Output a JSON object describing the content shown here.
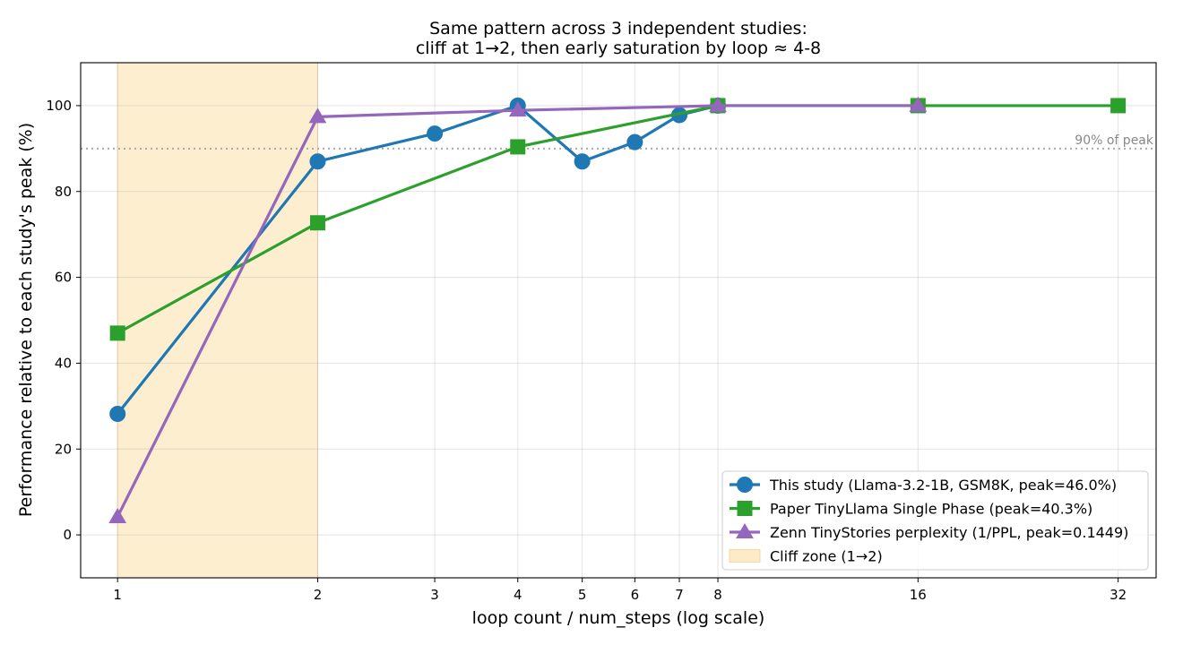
{
  "chart_data": {
    "type": "line",
    "title_lines": [
      "Same pattern across 3 independent studies:",
      "cliff at 1→2, then early saturation by loop ≈ 4-8"
    ],
    "xlabel": "loop count / num_steps (log scale)",
    "ylabel": "Performance relative to each study's peak (%)",
    "x_scale": "log2",
    "xlim": [
      0.88,
      36.5
    ],
    "ylim": [
      -10,
      110
    ],
    "x_ticks": [
      1,
      2,
      3,
      4,
      5,
      6,
      7,
      8,
      16,
      32
    ],
    "x_tick_labels": [
      "1",
      "2",
      "3",
      "4",
      "5",
      "6",
      "7",
      "8",
      "16",
      "32"
    ],
    "y_ticks": [
      0,
      20,
      40,
      60,
      80,
      100
    ],
    "y_tick_labels": [
      "0",
      "20",
      "40",
      "60",
      "80",
      "100"
    ],
    "grid": true,
    "legend_position": "lower-right",
    "shaded_region": {
      "x": [
        1,
        2
      ],
      "label": "Cliff zone (1→2)",
      "color": "#fdebc8"
    },
    "reference_line": {
      "y": 90,
      "label": "90% of peak",
      "color": "#aaaaaa"
    },
    "series": [
      {
        "name": "This study (Llama-3.2-1B, GSM8K, peak=46.0%)",
        "color": "#1f77b4",
        "marker": "circle",
        "x": [
          1,
          2,
          3,
          4,
          5,
          6,
          7,
          8
        ],
        "y": [
          28.2,
          87.0,
          93.5,
          100.0,
          87.0,
          91.5,
          97.8,
          100.0
        ]
      },
      {
        "name": "Paper TinyLlama Single Phase (peak=40.3%)",
        "color": "#2ca02c",
        "marker": "square",
        "x": [
          1,
          2,
          4,
          8,
          16,
          32
        ],
        "y": [
          47.0,
          72.7,
          90.4,
          100.0,
          100.0,
          100.0
        ]
      },
      {
        "name": "Zenn TinyStories perplexity (1/PPL, peak=0.1449)",
        "color": "#9467bd",
        "marker": "triangle",
        "x": [
          1,
          2,
          4,
          8,
          16
        ],
        "y": [
          4.2,
          97.4,
          98.9,
          100.0,
          100.0
        ]
      }
    ]
  }
}
